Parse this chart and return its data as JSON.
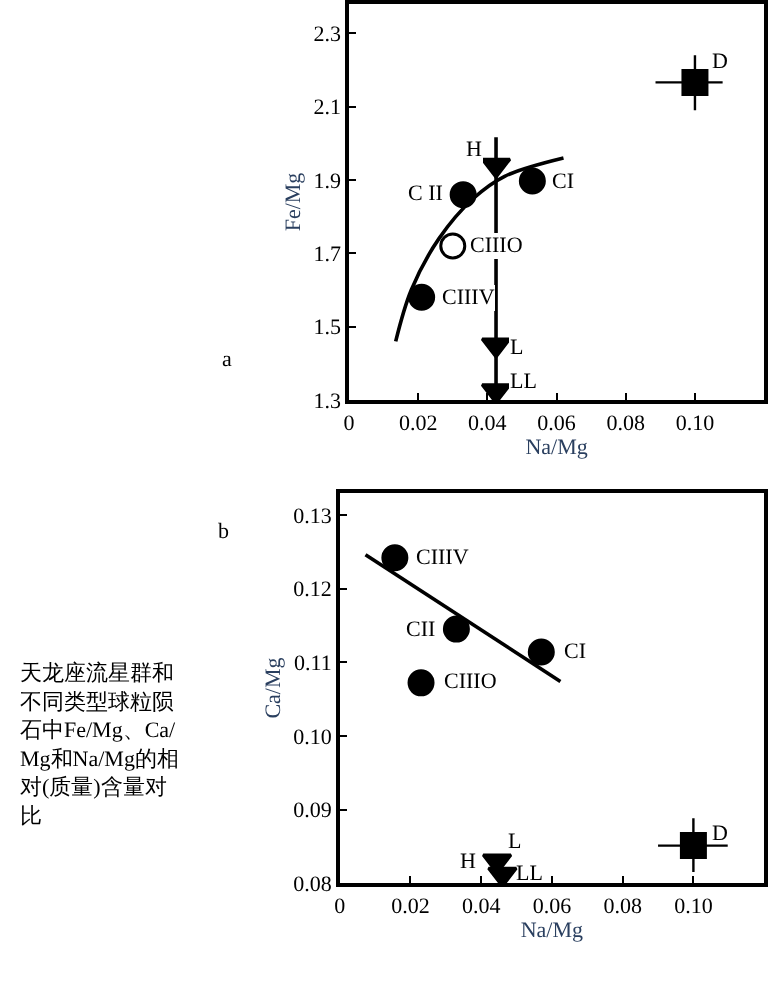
{
  "chart_data": [
    {
      "type": "scatter",
      "xlabel": "Na/Mg",
      "ylabel": "Fe/Mg",
      "xlim": [
        0,
        0.12
      ],
      "xticks": [
        0,
        0.02,
        0.04,
        0.06,
        0.08,
        {
          "value": 0.1,
          "label": "0.10"
        }
      ],
      "ylim": [
        1.3,
        2.38
      ],
      "yticks": [
        1.3,
        1.5,
        1.7,
        1.9,
        2.1,
        2.3
      ],
      "series": [
        {
          "type": "line",
          "color": "#000000",
          "line_style": "solid",
          "x": [
            0.0135,
            0.018,
            0.026,
            0.036,
            0.045,
            0.062
          ],
          "values": [
            1.46,
            1.6,
            1.74,
            1.85,
            1.91,
            1.96
          ]
        },
        {
          "marker": "circle",
          "color": "#000000",
          "x": [
            0.033,
            0.053,
            0.021
          ],
          "values": [
            1.86,
            1.897,
            1.58
          ]
        },
        {
          "marker": "circle",
          "color": "#ffffff",
          "x": [
            0.03
          ],
          "values": [
            1.72
          ]
        },
        {
          "marker": "triangle",
          "color": "#000000",
          "x": [
            0.0425,
            0.0425,
            0.0425
          ],
          "values": [
            1.94,
            1.45,
            1.325
          ]
        },
        {
          "marker": "square",
          "color": "#000000",
          "x": [
            0.1
          ],
          "values": [
            2.166
          ],
          "errors": [
            [
              2.09,
              2.24
            ]
          ],
          "xerrors": [
            [
              0.0886,
              0.108
            ]
          ]
        }
      ],
      "annotations": [
        {
          "text": "D",
          "x": 0.1,
          "y": 2.166
        },
        {
          "text": "H",
          "x": 0.0425,
          "y": 1.94
        },
        {
          "text": "C II",
          "x": 0.033,
          "y": 1.86
        },
        {
          "text": "CI",
          "x": 0.053,
          "y": 1.897
        },
        {
          "text": "CIIIO",
          "x": 0.03,
          "y": 1.72
        },
        {
          "text": "CIIIV",
          "x": 0.021,
          "y": 1.58
        },
        {
          "text": "L",
          "x": 0.0425,
          "y": 1.45
        },
        {
          "text": "LL",
          "x": 0.0425,
          "y": 1.325
        },
        "a"
      ]
    },
    {
      "type": "scatter",
      "xlabel": "Na/Mg",
      "ylabel": "Ca/Mg",
      "xlim": [
        0,
        0.12
      ],
      "xticks": [
        0,
        0.02,
        0.04,
        0.06,
        0.08,
        {
          "value": 0.1,
          "label": "0.10"
        }
      ],
      "ylim": [
        0.08,
        0.133
      ],
      "yticks": [
        0.08,
        0.09,
        {
          "value": 0.1,
          "label": "0.10"
        },
        0.11,
        0.12,
        0.13
      ],
      "series": [
        {
          "type": "line",
          "color": "#000000",
          "line_style": "solid",
          "x": [
            0.0073,
            0.0624
          ],
          "values": [
            0.1246,
            0.1074
          ]
        },
        {
          "marker": "circle",
          "color": "#000000",
          "x": [
            0.0156,
            0.033,
            0.057,
            0.023
          ],
          "values": [
            0.1242,
            0.1145,
            0.1114,
            0.1072
          ]
        },
        {
          "marker": "triangle",
          "color": "#000000",
          "x": [
            0.0445,
            0.046
          ],
          "values": [
            0.083,
            0.0812
          ]
        },
        {
          "marker": "square",
          "color": "#000000",
          "x": [
            0.1
          ],
          "values": [
            0.0851
          ],
          "errors": [
            [
              0.0815,
              0.0888
            ]
          ],
          "xerrors": [
            [
              0.09,
              0.1097
            ]
          ]
        }
      ],
      "annotations": [
        {
          "text": "CIIIV",
          "x": 0.0156,
          "y": 0.1242
        },
        {
          "text": "CII",
          "x": 0.033,
          "y": 0.1145
        },
        {
          "text": "CI",
          "x": 0.057,
          "y": 0.1114
        },
        {
          "text": "CIIIO",
          "x": 0.023,
          "y": 0.1072
        },
        {
          "text": "H",
          "x": 0.043,
          "y": 0.0833
        },
        {
          "text": "L",
          "x": 0.0445,
          "y": 0.083
        },
        {
          "text": "LL",
          "x": 0.046,
          "y": 0.0812
        },
        {
          "text": "D",
          "x": 0.1,
          "y": 0.0851
        },
        "b",
        "天龙座流星群和不同类型球粒陨石中Fe/Mg、Ca/Mg和Na/Mg的相对(质量)含量对比"
      ]
    }
  ]
}
